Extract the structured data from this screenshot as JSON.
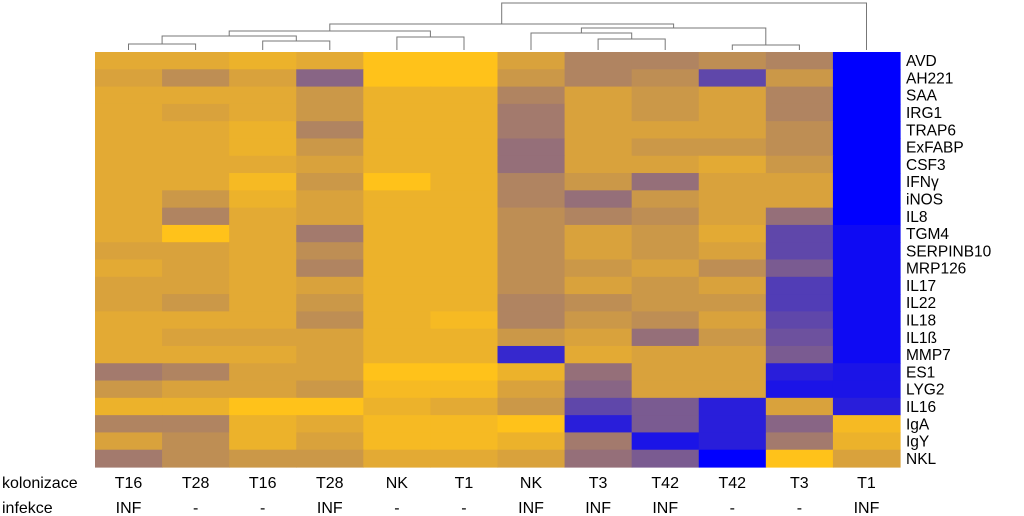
{
  "chart_data": {
    "type": "heatmap",
    "title": "",
    "rows": [
      "AVD",
      "AH221",
      "SAA",
      "IRG1",
      "TRAP6",
      "ExFABP",
      "CSF3",
      "IFNγ",
      "iNOS",
      "IL8",
      "TGM4",
      "SERPINB10",
      "MRP126",
      "IL17",
      "IL22",
      "IL18",
      "IL1ß",
      "MMP7",
      "ES1",
      "LYG2",
      "IL16",
      "IgA",
      "IgY",
      "NKL"
    ],
    "columns": [
      {
        "kolonizace": "T16",
        "infekce": "INF"
      },
      {
        "kolonizace": "T28",
        "infekce": "-"
      },
      {
        "kolonizace": "T16",
        "infekce": "-"
      },
      {
        "kolonizace": "T28",
        "infekce": "INF"
      },
      {
        "kolonizace": "NK",
        "infekce": "-"
      },
      {
        "kolonizace": "T1",
        "infekce": "-"
      },
      {
        "kolonizace": "NK",
        "infekce": "INF"
      },
      {
        "kolonizace": "T3",
        "infekce": "INF"
      },
      {
        "kolonizace": "T42",
        "infekce": "INF"
      },
      {
        "kolonizace": "T42",
        "infekce": "-"
      },
      {
        "kolonizace": "T3",
        "infekce": "-"
      },
      {
        "kolonizace": "T1",
        "infekce": "INF"
      }
    ],
    "row_header_labels": {
      "kolonizace": "kolonizace",
      "infekce": "infekce"
    },
    "color_scale": {
      "low": "#ffc21a",
      "mid": "#d9a23c",
      "high": "#0000ff"
    },
    "values": [
      [
        0.15,
        0.15,
        0.1,
        0.15,
        0.0,
        0.0,
        0.2,
        0.35,
        0.35,
        0.3,
        0.35,
        1.0
      ],
      [
        0.2,
        0.3,
        0.2,
        0.5,
        0.0,
        0.0,
        0.25,
        0.35,
        0.3,
        0.65,
        0.25,
        1.0
      ],
      [
        0.15,
        0.15,
        0.15,
        0.25,
        0.1,
        0.1,
        0.35,
        0.2,
        0.25,
        0.2,
        0.35,
        1.0
      ],
      [
        0.15,
        0.2,
        0.15,
        0.25,
        0.1,
        0.1,
        0.4,
        0.2,
        0.25,
        0.2,
        0.35,
        1.0
      ],
      [
        0.15,
        0.15,
        0.1,
        0.35,
        0.1,
        0.1,
        0.4,
        0.2,
        0.2,
        0.2,
        0.3,
        1.0
      ],
      [
        0.15,
        0.15,
        0.1,
        0.25,
        0.1,
        0.1,
        0.45,
        0.2,
        0.25,
        0.25,
        0.3,
        1.0
      ],
      [
        0.15,
        0.15,
        0.15,
        0.2,
        0.1,
        0.1,
        0.45,
        0.2,
        0.2,
        0.15,
        0.25,
        1.0
      ],
      [
        0.15,
        0.15,
        0.05,
        0.25,
        0.0,
        0.1,
        0.35,
        0.25,
        0.45,
        0.2,
        0.2,
        1.0
      ],
      [
        0.15,
        0.25,
        0.1,
        0.2,
        0.1,
        0.1,
        0.35,
        0.45,
        0.25,
        0.2,
        0.2,
        1.0
      ],
      [
        0.15,
        0.35,
        0.15,
        0.2,
        0.1,
        0.1,
        0.3,
        0.35,
        0.3,
        0.2,
        0.45,
        1.0
      ],
      [
        0.15,
        0.0,
        0.15,
        0.4,
        0.1,
        0.1,
        0.3,
        0.2,
        0.25,
        0.15,
        0.65,
        0.95
      ],
      [
        0.2,
        0.2,
        0.15,
        0.3,
        0.1,
        0.1,
        0.3,
        0.2,
        0.25,
        0.2,
        0.65,
        0.95
      ],
      [
        0.15,
        0.2,
        0.15,
        0.35,
        0.1,
        0.1,
        0.3,
        0.25,
        0.2,
        0.3,
        0.55,
        0.95
      ],
      [
        0.2,
        0.2,
        0.15,
        0.2,
        0.1,
        0.1,
        0.3,
        0.2,
        0.25,
        0.2,
        0.7,
        0.95
      ],
      [
        0.2,
        0.25,
        0.15,
        0.25,
        0.1,
        0.1,
        0.35,
        0.3,
        0.25,
        0.25,
        0.7,
        0.95
      ],
      [
        0.15,
        0.15,
        0.15,
        0.3,
        0.1,
        0.05,
        0.35,
        0.25,
        0.3,
        0.2,
        0.65,
        0.95
      ],
      [
        0.15,
        0.2,
        0.2,
        0.2,
        0.1,
        0.1,
        0.25,
        0.2,
        0.45,
        0.25,
        0.6,
        0.95
      ],
      [
        0.15,
        0.15,
        0.15,
        0.2,
        0.1,
        0.1,
        0.8,
        0.15,
        0.2,
        0.2,
        0.55,
        0.95
      ],
      [
        0.4,
        0.35,
        0.2,
        0.2,
        0.0,
        0.0,
        0.1,
        0.45,
        0.2,
        0.2,
        0.85,
        0.9
      ],
      [
        0.25,
        0.2,
        0.2,
        0.25,
        0.05,
        0.05,
        0.2,
        0.5,
        0.2,
        0.2,
        0.9,
        0.9
      ],
      [
        0.1,
        0.1,
        0.0,
        0.0,
        0.1,
        0.15,
        0.25,
        0.65,
        0.55,
        0.85,
        0.2,
        0.85
      ],
      [
        0.35,
        0.35,
        0.1,
        0.15,
        0.05,
        0.05,
        0.0,
        0.85,
        0.55,
        0.85,
        0.5,
        0.05
      ],
      [
        0.2,
        0.3,
        0.1,
        0.2,
        0.05,
        0.05,
        0.1,
        0.4,
        0.9,
        0.85,
        0.4,
        0.1
      ],
      [
        0.4,
        0.3,
        0.25,
        0.25,
        0.15,
        0.15,
        0.2,
        0.45,
        0.55,
        1.0,
        0.0,
        0.2
      ]
    ]
  }
}
